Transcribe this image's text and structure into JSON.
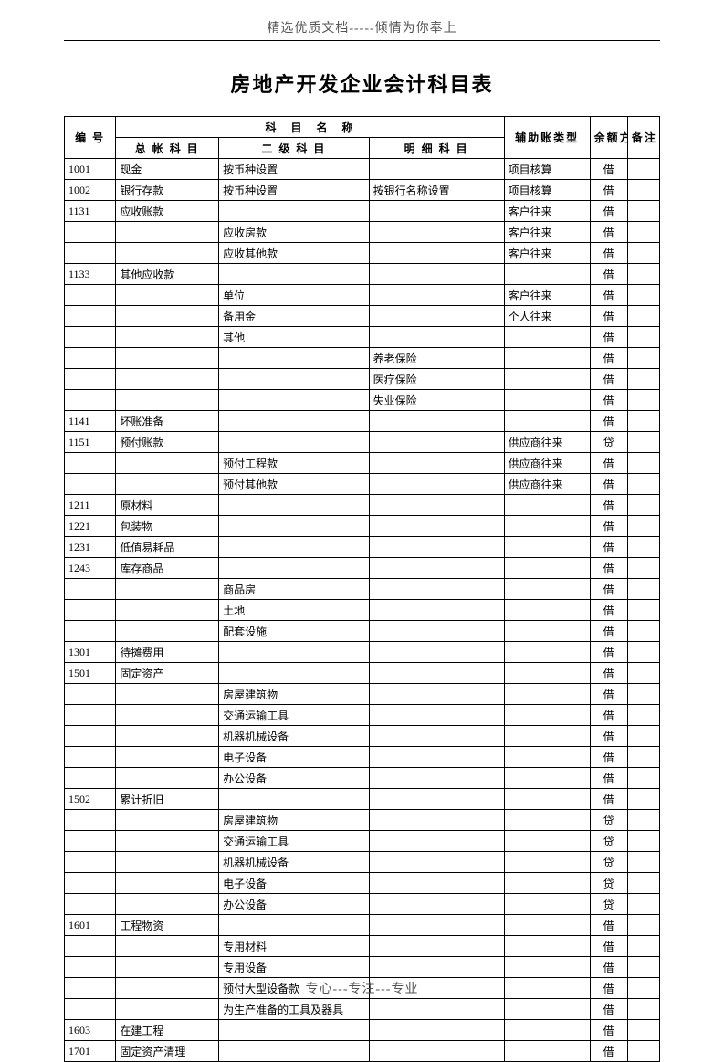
{
  "header": "精选优质文档-----倾情为你奉上",
  "title": "房地产开发企业会计科目表",
  "footer": "专心---专注---专业",
  "thead": {
    "code": "编 号",
    "subject_group": "科　目　名　称",
    "l1": "总 帐 科 目",
    "l2": "二 级 科 目",
    "l3": "明 细 科 目",
    "aux": "辅助账类型",
    "dir": "余额方向",
    "note": "备注"
  },
  "rows": [
    {
      "code": "1001",
      "l1": "现金",
      "l2": "按币种设置",
      "l3": "",
      "aux": "项目核算",
      "dir": "借",
      "note": ""
    },
    {
      "code": "1002",
      "l1": "银行存款",
      "l2": "按币种设置",
      "l3": "按银行名称设置",
      "aux": "项目核算",
      "dir": "借",
      "note": ""
    },
    {
      "code": "1131",
      "l1": "应收账款",
      "l2": "",
      "l3": "",
      "aux": "客户往来",
      "dir": "借",
      "note": ""
    },
    {
      "code": "",
      "l1": "",
      "l2": "应收房款",
      "l3": "",
      "aux": "客户往来",
      "dir": "借",
      "note": ""
    },
    {
      "code": "",
      "l1": "",
      "l2": "应收其他款",
      "l3": "",
      "aux": "客户往来",
      "dir": "借",
      "note": ""
    },
    {
      "code": "1133",
      "l1": "其他应收款",
      "l2": "",
      "l3": "",
      "aux": "",
      "dir": "借",
      "note": ""
    },
    {
      "code": "",
      "l1": "",
      "l2": "单位",
      "l3": "",
      "aux": "客户往来",
      "dir": "借",
      "note": ""
    },
    {
      "code": "",
      "l1": "",
      "l2": "备用金",
      "l3": "",
      "aux": "个人往来",
      "dir": "借",
      "note": ""
    },
    {
      "code": "",
      "l1": "",
      "l2": "其他",
      "l3": "",
      "aux": "",
      "dir": "借",
      "note": ""
    },
    {
      "code": "",
      "l1": "",
      "l2": "",
      "l3": "养老保险",
      "aux": "",
      "dir": "借",
      "note": ""
    },
    {
      "code": "",
      "l1": "",
      "l2": "",
      "l3": "医疗保险",
      "aux": "",
      "dir": "借",
      "note": ""
    },
    {
      "code": "",
      "l1": "",
      "l2": "",
      "l3": "失业保险",
      "aux": "",
      "dir": "借",
      "note": ""
    },
    {
      "code": "1141",
      "l1": "坏账准备",
      "l2": "",
      "l3": "",
      "aux": "",
      "dir": "借",
      "note": ""
    },
    {
      "code": "1151",
      "l1": "预付账款",
      "l2": "",
      "l3": "",
      "aux": "供应商往来",
      "dir": "贷",
      "note": ""
    },
    {
      "code": "",
      "l1": "",
      "l2": "预付工程款",
      "l3": "",
      "aux": "供应商往来",
      "dir": "借",
      "note": ""
    },
    {
      "code": "",
      "l1": "",
      "l2": "预付其他款",
      "l3": "",
      "aux": "供应商往来",
      "dir": "借",
      "note": ""
    },
    {
      "code": "1211",
      "l1": "原材料",
      "l2": "",
      "l3": "",
      "aux": "",
      "dir": "借",
      "note": ""
    },
    {
      "code": "1221",
      "l1": "包装物",
      "l2": "",
      "l3": "",
      "aux": "",
      "dir": "借",
      "note": ""
    },
    {
      "code": "1231",
      "l1": "低值易耗品",
      "l2": "",
      "l3": "",
      "aux": "",
      "dir": "借",
      "note": ""
    },
    {
      "code": "1243",
      "l1": "库存商品",
      "l2": "",
      "l3": "",
      "aux": "",
      "dir": "借",
      "note": ""
    },
    {
      "code": "",
      "l1": "",
      "l2": "商品房",
      "l3": "",
      "aux": "",
      "dir": "借",
      "note": ""
    },
    {
      "code": "",
      "l1": "",
      "l2": "土地",
      "l3": "",
      "aux": "",
      "dir": "借",
      "note": ""
    },
    {
      "code": "",
      "l1": "",
      "l2": "配套设施",
      "l3": "",
      "aux": "",
      "dir": "借",
      "note": ""
    },
    {
      "code": "1301",
      "l1": "待摊费用",
      "l2": "",
      "l3": "",
      "aux": "",
      "dir": "借",
      "note": ""
    },
    {
      "code": "1501",
      "l1": "固定资产",
      "l2": "",
      "l3": "",
      "aux": "",
      "dir": "借",
      "note": ""
    },
    {
      "code": "",
      "l1": "",
      "l2": "房屋建筑物",
      "l3": "",
      "aux": "",
      "dir": "借",
      "note": ""
    },
    {
      "code": "",
      "l1": "",
      "l2": "交通运输工具",
      "l3": "",
      "aux": "",
      "dir": "借",
      "note": ""
    },
    {
      "code": "",
      "l1": "",
      "l2": "机器机械设备",
      "l3": "",
      "aux": "",
      "dir": "借",
      "note": ""
    },
    {
      "code": "",
      "l1": "",
      "l2": "电子设备",
      "l3": "",
      "aux": "",
      "dir": "借",
      "note": ""
    },
    {
      "code": "",
      "l1": "",
      "l2": "办公设备",
      "l3": "",
      "aux": "",
      "dir": "借",
      "note": ""
    },
    {
      "code": "1502",
      "l1": "累计折旧",
      "l2": "",
      "l3": "",
      "aux": "",
      "dir": "借",
      "note": ""
    },
    {
      "code": "",
      "l1": "",
      "l2": "房屋建筑物",
      "l3": "",
      "aux": "",
      "dir": "贷",
      "note": ""
    },
    {
      "code": "",
      "l1": "",
      "l2": "交通运输工具",
      "l3": "",
      "aux": "",
      "dir": "贷",
      "note": ""
    },
    {
      "code": "",
      "l1": "",
      "l2": "机器机械设备",
      "l3": "",
      "aux": "",
      "dir": "贷",
      "note": ""
    },
    {
      "code": "",
      "l1": "",
      "l2": "电子设备",
      "l3": "",
      "aux": "",
      "dir": "贷",
      "note": ""
    },
    {
      "code": "",
      "l1": "",
      "l2": "办公设备",
      "l3": "",
      "aux": "",
      "dir": "贷",
      "note": ""
    },
    {
      "code": "1601",
      "l1": "工程物资",
      "l2": "",
      "l3": "",
      "aux": "",
      "dir": "借",
      "note": ""
    },
    {
      "code": "",
      "l1": "",
      "l2": "专用材料",
      "l3": "",
      "aux": "",
      "dir": "借",
      "note": ""
    },
    {
      "code": "",
      "l1": "",
      "l2": "专用设备",
      "l3": "",
      "aux": "",
      "dir": "借",
      "note": ""
    },
    {
      "code": "",
      "l1": "",
      "l2": "预付大型设备款",
      "l3": "",
      "aux": "",
      "dir": "借",
      "note": ""
    },
    {
      "code": "",
      "l1": "",
      "l2": "为生产准备的工具及器具",
      "l3": "",
      "aux": "",
      "dir": "借",
      "note": ""
    },
    {
      "code": "1603",
      "l1": "在建工程",
      "l2": "",
      "l3": "",
      "aux": "",
      "dir": "借",
      "note": ""
    },
    {
      "code": "1701",
      "l1": "固定资产清理",
      "l2": "",
      "l3": "",
      "aux": "",
      "dir": "借",
      "note": ""
    }
  ]
}
